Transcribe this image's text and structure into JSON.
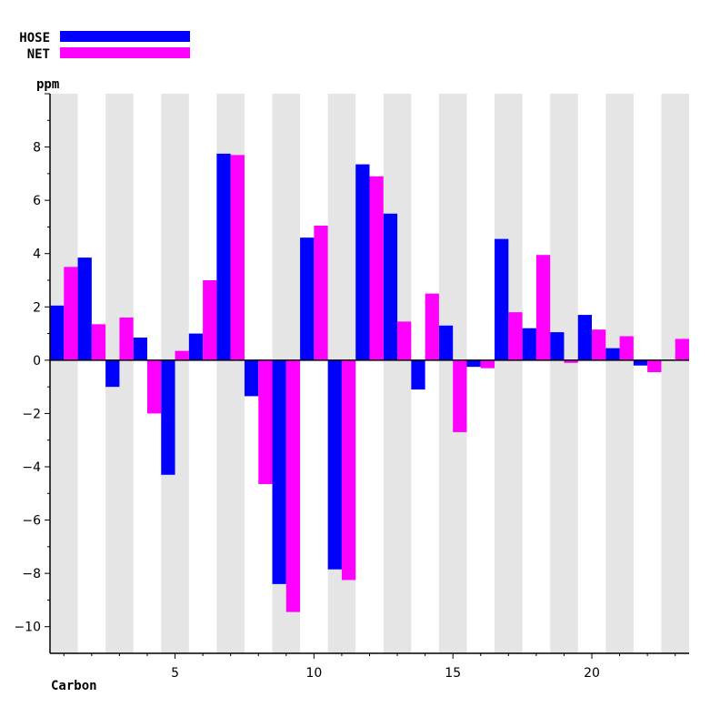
{
  "chart_data": {
    "type": "bar",
    "ylabel": "ppm",
    "xlabel": "Carbon",
    "ylim": [
      -11,
      10
    ],
    "y_ticks": [
      -10,
      -8,
      -6,
      -4,
      -2,
      0,
      2,
      4,
      6,
      8
    ],
    "x_ticks": [
      5,
      10,
      15,
      20
    ],
    "xlim": [
      0.5,
      23.5
    ],
    "grid": "alternating-vertical-bands",
    "legend_position": "top-left",
    "categories": [
      1,
      2,
      3,
      4,
      5,
      6,
      7,
      8,
      9,
      10,
      11,
      12,
      13,
      14,
      15,
      16,
      17,
      18,
      19,
      20,
      21,
      22,
      23
    ],
    "series": [
      {
        "name": "HOSE",
        "color": "#0000ff",
        "values": [
          2.05,
          3.85,
          -1.0,
          0.85,
          -4.3,
          1.0,
          7.75,
          -1.35,
          -8.4,
          4.6,
          -7.85,
          7.35,
          5.5,
          -1.1,
          1.3,
          -0.25,
          4.55,
          1.2,
          1.05,
          1.7,
          0.45,
          -0.2,
          null
        ]
      },
      {
        "name": "NET",
        "color": "#ff00ff",
        "values": [
          3.5,
          1.35,
          1.6,
          -2.0,
          0.35,
          3.0,
          7.7,
          -4.65,
          -9.45,
          5.05,
          -8.25,
          6.9,
          1.45,
          2.5,
          -2.7,
          -0.3,
          1.8,
          3.95,
          -0.1,
          1.15,
          0.9,
          -0.45,
          0.8
        ]
      }
    ]
  }
}
